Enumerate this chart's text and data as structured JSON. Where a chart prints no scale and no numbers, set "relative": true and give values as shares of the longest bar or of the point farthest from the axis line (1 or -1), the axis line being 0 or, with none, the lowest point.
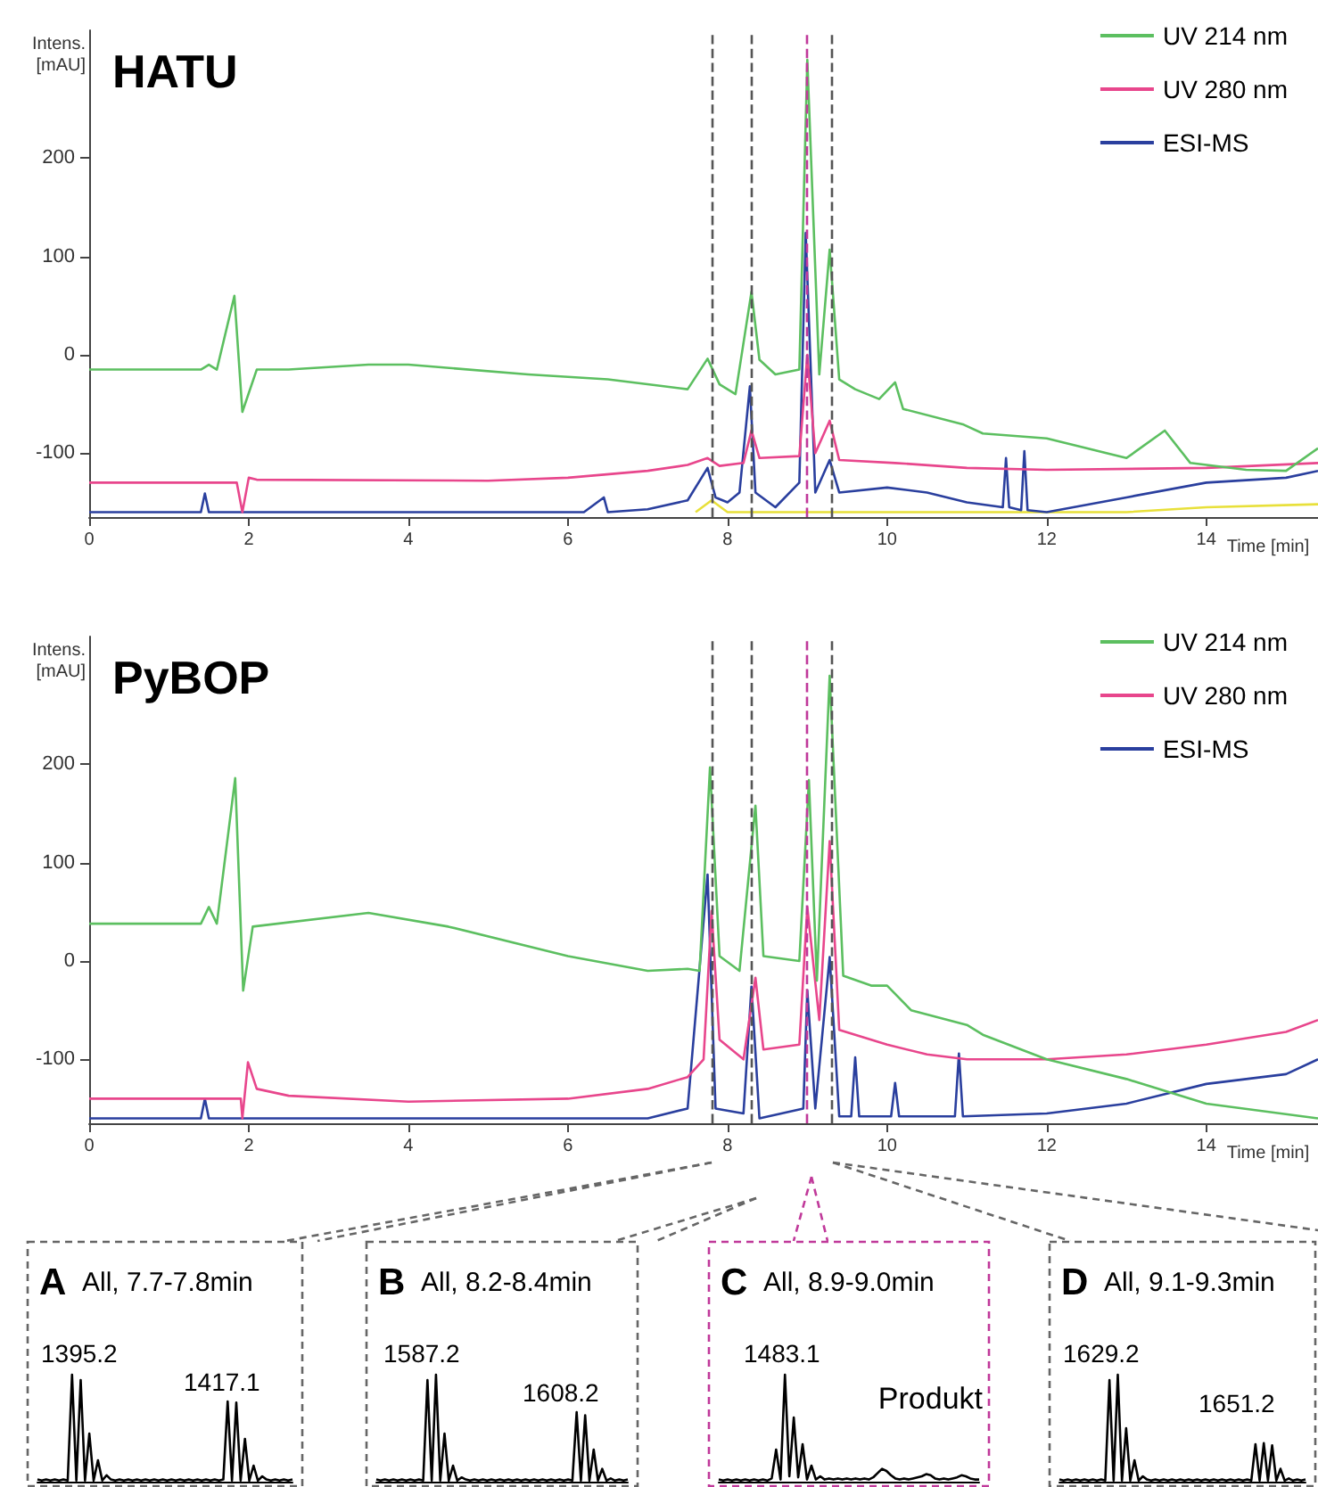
{
  "chart_data": [
    {
      "type": "line",
      "title": "HATU",
      "xlabel": "Time [min]",
      "ylabel": "Intens. [mAU]",
      "xlim": [
        0,
        15.4
      ],
      "xticks": [
        0,
        2,
        4,
        6,
        8,
        10,
        12,
        14
      ],
      "ylim": [
        -165,
        330
      ],
      "yticks": [
        -100,
        0,
        100,
        200
      ],
      "legend": "top right",
      "grid": false,
      "ref_lines": [
        {
          "axis": "x",
          "value": 7.8,
          "color": "#555555",
          "line_style": "dashed"
        },
        {
          "axis": "x",
          "value": 8.3,
          "color": "#555555",
          "line_style": "dashed"
        },
        {
          "axis": "x",
          "value": 9.0,
          "color": "#c0399a",
          "line_style": "dashed"
        },
        {
          "axis": "x",
          "value": 9.3,
          "color": "#555555",
          "line_style": "dashed"
        }
      ],
      "series": [
        {
          "name": "UV 214 nm",
          "color": "#5cbf60",
          "x": [
            0,
            1.4,
            1.5,
            1.6,
            1.82,
            1.92,
            2.1,
            2.5,
            3.5,
            4,
            5.5,
            6.5,
            7.2,
            7.5,
            7.75,
            7.9,
            8.1,
            8.3,
            8.4,
            8.6,
            8.9,
            9.0,
            9.15,
            9.28,
            9.4,
            9.6,
            9.9,
            10.1,
            10.2,
            10.96,
            11.2,
            12,
            12.5,
            13,
            13.48,
            13.8,
            14.5,
            15,
            15.4
          ],
          "values": [
            -15,
            -15,
            -10,
            -15,
            60,
            -58,
            -15,
            -15,
            -10,
            -10,
            -20,
            -25,
            -32,
            -35,
            -4,
            -30,
            -40,
            64,
            -5,
            -20,
            -15,
            300,
            -20,
            107,
            -25,
            -35,
            -45,
            -28,
            -55,
            -71,
            -80,
            -85,
            -95,
            -105,
            -77,
            -110,
            -117,
            -118,
            -95
          ]
        },
        {
          "name": "UV 280 nm",
          "color": "#e8468c",
          "x": [
            0,
            1.85,
            1.92,
            2.0,
            2.1,
            5,
            6,
            7,
            7.5,
            7.75,
            7.9,
            8.2,
            8.3,
            8.4,
            8.9,
            9.0,
            9.1,
            9.28,
            9.4,
            10.1,
            11,
            12,
            14,
            15.4
          ],
          "values": [
            -130,
            -130,
            -160,
            -125,
            -127,
            -128,
            -125,
            -118,
            -112,
            -105,
            -113,
            -110,
            -77,
            -105,
            -103,
            0,
            -100,
            -67,
            -107,
            -110,
            -115,
            -117,
            -115,
            -110
          ]
        },
        {
          "name": "ESI-MS",
          "color": "#2a3f9e",
          "x": [
            0,
            1.4,
            1.45,
            1.5,
            6.2,
            6.45,
            6.5,
            7.0,
            7.5,
            7.75,
            7.85,
            8.0,
            8.15,
            8.28,
            8.35,
            8.6,
            8.9,
            8.98,
            9.1,
            9.28,
            9.4,
            10,
            10.5,
            11,
            11.45,
            11.49,
            11.53,
            11.68,
            11.72,
            11.76,
            12,
            13,
            14,
            15,
            15.4
          ],
          "values": [
            -160,
            -160,
            -141,
            -160,
            -160,
            -145,
            -160,
            -157,
            -148,
            -115,
            -145,
            -150,
            -140,
            -32,
            -140,
            -155,
            -130,
            124,
            -140,
            -107,
            -140,
            -135,
            -140,
            -150,
            -155,
            -105,
            -155,
            -158,
            -98,
            -158,
            -160,
            -145,
            -130,
            -125,
            -118
          ]
        },
        {
          "color": "#e8e03a",
          "x": [
            7.6,
            7.8,
            8.0,
            13,
            14,
            15.4
          ],
          "values": [
            -160,
            -148,
            -160,
            -160,
            -155,
            -152
          ]
        }
      ]
    },
    {
      "type": "line",
      "title": "PyBOP",
      "xlabel": "Time [min]",
      "ylabel": "Intens. [mAU]",
      "xlim": [
        0,
        15.4
      ],
      "xticks": [
        0,
        2,
        4,
        6,
        8,
        10,
        12,
        14
      ],
      "ylim": [
        -165,
        330
      ],
      "yticks": [
        -100,
        0,
        100,
        200
      ],
      "legend": "top right",
      "grid": false,
      "ref_lines": [
        {
          "axis": "x",
          "value": 7.8,
          "color": "#555555",
          "line_style": "dashed"
        },
        {
          "axis": "x",
          "value": 8.3,
          "color": "#555555",
          "line_style": "dashed"
        },
        {
          "axis": "x",
          "value": 9.0,
          "color": "#c0399a",
          "line_style": "dashed"
        },
        {
          "axis": "x",
          "value": 9.3,
          "color": "#555555",
          "line_style": "dashed"
        }
      ],
      "series": [
        {
          "name": "UV 214 nm",
          "color": "#5cbf60",
          "x": [
            0,
            1.4,
            1.5,
            1.6,
            1.83,
            1.93,
            2.05,
            3.5,
            4.5,
            6,
            7,
            7.5,
            7.65,
            7.78,
            7.9,
            8.15,
            8.35,
            8.45,
            8.9,
            9.02,
            9.12,
            9.28,
            9.45,
            9.8,
            10,
            10.3,
            11,
            11.2,
            12,
            13,
            14,
            15.4
          ],
          "values": [
            38,
            38,
            55,
            38,
            186,
            -30,
            35,
            49,
            35,
            5,
            -10,
            -8,
            -10,
            197,
            5,
            -10,
            158,
            5,
            0,
            184,
            -20,
            290,
            -15,
            -25,
            -25,
            -50,
            -65,
            -75,
            -100,
            -120,
            -145,
            -160
          ]
        },
        {
          "name": "UV 280 nm",
          "color": "#e8468c",
          "x": [
            0,
            1.9,
            1.92,
            1.99,
            2.1,
            2.5,
            4,
            6,
            7,
            7.5,
            7.7,
            7.8,
            7.9,
            8.2,
            8.35,
            8.45,
            8.9,
            9.0,
            9.15,
            9.28,
            9.4,
            10,
            10.5,
            11,
            12,
            13,
            14,
            15,
            15.4
          ],
          "values": [
            -140,
            -140,
            -160,
            -103,
            -130,
            -137,
            -143,
            -140,
            -130,
            -118,
            -100,
            51,
            -80,
            -100,
            -17,
            -90,
            -85,
            55,
            -60,
            122,
            -70,
            -85,
            -95,
            -100,
            -100,
            -95,
            -85,
            -72,
            -60
          ]
        },
        {
          "name": "ESI-MS",
          "color": "#2a3f9e",
          "x": [
            0,
            1.4,
            1.45,
            1.5,
            7,
            7.5,
            7.75,
            7.85,
            8.2,
            8.3,
            8.4,
            8.95,
            9.0,
            9.1,
            9.28,
            9.4,
            9.55,
            9.6,
            9.65,
            10.05,
            10.1,
            10.15,
            10.85,
            10.9,
            10.95,
            12,
            13,
            14,
            15,
            15.4
          ],
          "values": [
            -160,
            -160,
            -140,
            -160,
            -160,
            -150,
            88,
            -150,
            -155,
            -26,
            -160,
            -150,
            -30,
            -150,
            4,
            -158,
            -158,
            -98,
            -158,
            -158,
            -124,
            -158,
            -158,
            -94,
            -158,
            -155,
            -145,
            -125,
            -115,
            -100
          ]
        }
      ]
    },
    {
      "type": "line",
      "relative": true,
      "title": "A",
      "subtitle": "All, 7.7-7.8min",
      "annotations": [
        "1395.2",
        "1417.1"
      ],
      "categories": [
        null,
        null,
        null,
        null,
        null,
        null,
        null,
        null,
        null,
        null,
        null,
        null,
        null,
        null,
        null,
        null,
        null,
        null,
        null,
        null,
        null,
        null,
        null,
        null,
        null,
        null,
        null,
        null,
        null,
        null,
        null,
        null,
        null,
        null,
        null,
        null,
        null,
        null,
        null,
        null,
        null,
        null,
        null,
        null,
        null,
        null,
        null,
        null,
        null,
        null,
        null,
        null,
        null,
        null,
        null,
        null,
        null,
        null,
        null,
        null
      ],
      "series": [
        {
          "color": "#000000",
          "values": [
            0.02,
            0.01,
            0.02,
            0.01,
            0.02,
            0.01,
            0.02,
            0.01,
            1.0,
            0.01,
            0.95,
            0.01,
            0.45,
            0.01,
            0.2,
            0.01,
            0.06,
            0.02,
            0.01,
            0.02,
            0.01,
            0.02,
            0.01,
            0.02,
            0.01,
            0.02,
            0.01,
            0.02,
            0.01,
            0.02,
            0.01,
            0.02,
            0.01,
            0.02,
            0.01,
            0.02,
            0.01,
            0.02,
            0.01,
            0.02,
            0.01,
            0.02,
            0.01,
            0.02,
            0.75,
            0.01,
            0.74,
            0.01,
            0.4,
            0.01,
            0.15,
            0.01,
            0.05,
            0.02,
            0.01,
            0.02,
            0.01,
            0.02,
            0.01,
            0.02
          ]
        }
      ]
    },
    {
      "type": "line",
      "relative": true,
      "title": "B",
      "subtitle": "All, 8.2-8.4min",
      "annotations": [
        "1587.2",
        "1608.2"
      ],
      "categories": [
        null,
        null,
        null,
        null,
        null,
        null,
        null,
        null,
        null,
        null,
        null,
        null,
        null,
        null,
        null,
        null,
        null,
        null,
        null,
        null,
        null,
        null,
        null,
        null,
        null,
        null,
        null,
        null,
        null,
        null,
        null,
        null,
        null,
        null,
        null,
        null,
        null,
        null,
        null,
        null,
        null,
        null,
        null,
        null,
        null,
        null,
        null,
        null,
        null,
        null,
        null,
        null,
        null,
        null,
        null,
        null,
        null,
        null,
        null,
        null
      ],
      "series": [
        {
          "color": "#000000",
          "values": [
            0.02,
            0.01,
            0.02,
            0.01,
            0.02,
            0.01,
            0.02,
            0.01,
            0.02,
            0.01,
            0.02,
            0.01,
            0.95,
            0.01,
            1.0,
            0.01,
            0.45,
            0.01,
            0.15,
            0.01,
            0.04,
            0.02,
            0.01,
            0.02,
            0.01,
            0.02,
            0.01,
            0.02,
            0.01,
            0.02,
            0.01,
            0.02,
            0.01,
            0.02,
            0.01,
            0.02,
            0.01,
            0.02,
            0.01,
            0.02,
            0.01,
            0.02,
            0.01,
            0.02,
            0.01,
            0.02,
            0.01,
            0.65,
            0.01,
            0.62,
            0.01,
            0.3,
            0.01,
            0.12,
            0.01,
            0.03,
            0.01,
            0.02,
            0.01,
            0.02
          ]
        }
      ]
    },
    {
      "type": "line",
      "relative": true,
      "title": "C",
      "subtitle": "All, 8.9-9.0min",
      "annotations": [
        "1483.1",
        "Produkt"
      ],
      "categories": [
        null,
        null,
        null,
        null,
        null,
        null,
        null,
        null,
        null,
        null,
        null,
        null,
        null,
        null,
        null,
        null,
        null,
        null,
        null,
        null,
        null,
        null,
        null,
        null,
        null,
        null,
        null,
        null,
        null,
        null,
        null,
        null,
        null,
        null,
        null,
        null,
        null,
        null,
        null,
        null,
        null,
        null,
        null,
        null,
        null,
        null,
        null,
        null,
        null,
        null,
        null,
        null,
        null,
        null,
        null,
        null,
        null,
        null,
        null,
        null
      ],
      "series": [
        {
          "color": "#000000",
          "values": [
            0.02,
            0.01,
            0.02,
            0.01,
            0.02,
            0.01,
            0.02,
            0.01,
            0.02,
            0.01,
            0.02,
            0.01,
            0.03,
            0.3,
            0.02,
            1.0,
            0.05,
            0.6,
            0.04,
            0.35,
            0.02,
            0.15,
            0.02,
            0.05,
            0.02,
            0.03,
            0.02,
            0.03,
            0.02,
            0.03,
            0.02,
            0.03,
            0.02,
            0.03,
            0.02,
            0.04,
            0.08,
            0.12,
            0.1,
            0.06,
            0.03,
            0.02,
            0.03,
            0.02,
            0.03,
            0.04,
            0.05,
            0.07,
            0.06,
            0.03,
            0.02,
            0.03,
            0.02,
            0.03,
            0.04,
            0.06,
            0.05,
            0.03,
            0.02,
            0.02
          ]
        }
      ]
    },
    {
      "type": "line",
      "relative": true,
      "title": "D",
      "subtitle": "All, 9.1-9.3min",
      "annotations": [
        "1629.2",
        "1651.2"
      ],
      "categories": [
        null,
        null,
        null,
        null,
        null,
        null,
        null,
        null,
        null,
        null,
        null,
        null,
        null,
        null,
        null,
        null,
        null,
        null,
        null,
        null,
        null,
        null,
        null,
        null,
        null,
        null,
        null,
        null,
        null,
        null,
        null,
        null,
        null,
        null,
        null,
        null,
        null,
        null,
        null,
        null,
        null,
        null,
        null,
        null,
        null,
        null,
        null,
        null,
        null,
        null,
        null,
        null,
        null,
        null,
        null,
        null,
        null,
        null,
        null,
        null
      ],
      "series": [
        {
          "color": "#000000",
          "values": [
            0.02,
            0.01,
            0.02,
            0.01,
            0.02,
            0.01,
            0.02,
            0.01,
            0.02,
            0.01,
            0.02,
            0.01,
            0.95,
            0.01,
            1.0,
            0.01,
            0.5,
            0.01,
            0.2,
            0.01,
            0.05,
            0.02,
            0.01,
            0.02,
            0.01,
            0.02,
            0.01,
            0.02,
            0.01,
            0.02,
            0.01,
            0.02,
            0.01,
            0.02,
            0.01,
            0.02,
            0.01,
            0.02,
            0.01,
            0.02,
            0.01,
            0.02,
            0.01,
            0.02,
            0.01,
            0.02,
            0.01,
            0.35,
            0.01,
            0.36,
            0.01,
            0.34,
            0.01,
            0.12,
            0.01,
            0.03,
            0.01,
            0.02,
            0.01,
            0.02
          ]
        }
      ]
    }
  ]
}
